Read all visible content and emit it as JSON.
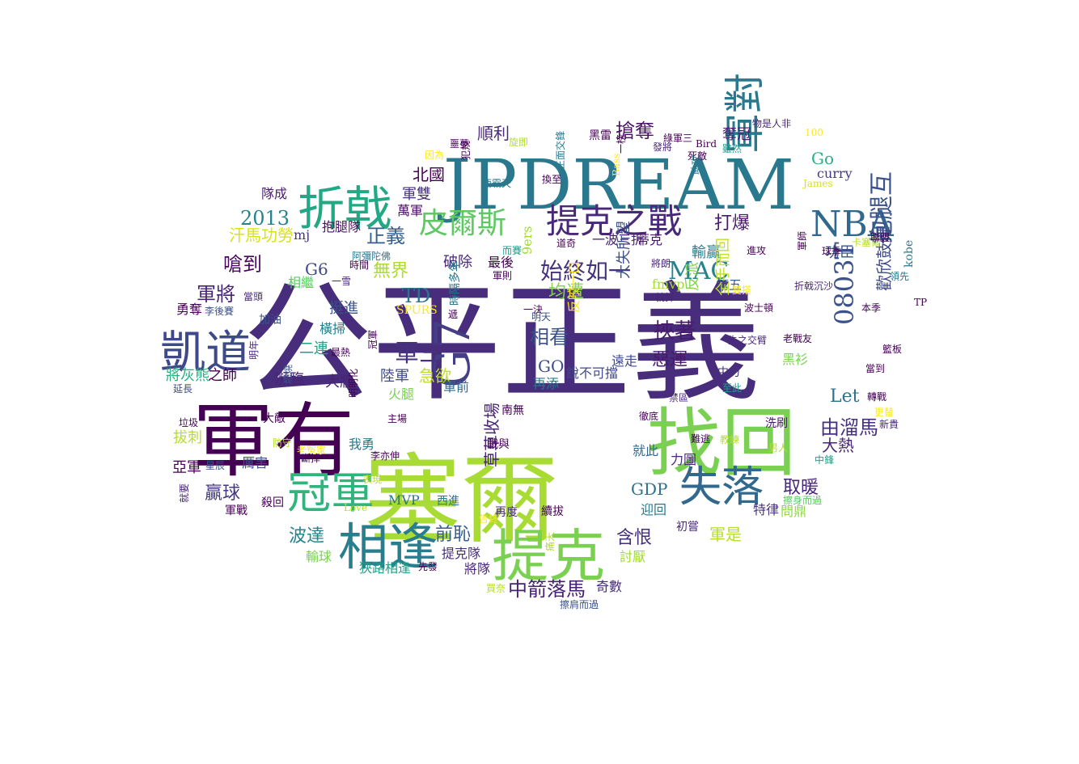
{
  "words": [
    {
      "text": "公平正義",
      "color": "#472d7b"
    },
    {
      "text": "塞爾",
      "color": "#a8db34"
    },
    {
      "text": "JPDREAM",
      "color": "#2a788e"
    },
    {
      "text": "軍有",
      "color": "#440154"
    },
    {
      "text": "找回",
      "color": "#7ad151"
    },
    {
      "text": "提克",
      "color": "#7ad151"
    },
    {
      "text": "相逢",
      "color": "#287d8e"
    },
    {
      "text": "折戟",
      "color": "#22a884"
    },
    {
      "text": "凱道",
      "color": "#3e4989"
    },
    {
      "text": "冠軍",
      "color": "#2fb47c"
    },
    {
      "text": "失落",
      "color": "#31688e"
    },
    {
      "text": "軍對",
      "color": "#2a788e"
    },
    {
      "text": "提克之戰",
      "color": "#482878"
    },
    {
      "text": "皮爾斯",
      "color": "#5ec962"
    },
    {
      "text": "NBA",
      "color": "#31688e"
    },
    {
      "text": "G7",
      "color": "#433e85"
    },
    {
      "text": "0803T",
      "color": "#3b528b"
    },
    {
      "text": "始終如一",
      "color": "#46337e"
    },
    {
      "text": "MAC",
      "color": "#25838e"
    },
    {
      "text": "抱腿互",
      "color": "#3b528b"
    },
    {
      "text": "軍三",
      "color": "#46327e"
    },
    {
      "text": "2013",
      "color": "#26828e"
    },
    {
      "text": "軍將",
      "color": "#482475"
    },
    {
      "text": "無界",
      "color": "#addc30"
    },
    {
      "text": "正義",
      "color": "#355f8d"
    },
    {
      "text": "搶奪",
      "color": "#471164"
    },
    {
      "text": "北國",
      "color": "#440154"
    },
    {
      "text": "打爆",
      "color": "#48186a"
    },
    {
      "text": "歡欣鼓舞",
      "color": "#3e4a89"
    },
    {
      "text": "嗆到",
      "color": "#46085c"
    },
    {
      "text": "G6",
      "color": "#3e4989"
    },
    {
      "text": "TD",
      "color": "#2c728e"
    },
    {
      "text": "相看",
      "color": "#3b518b"
    },
    {
      "text": "挾著",
      "color": "#481a6c"
    },
    {
      "text": "惡運",
      "color": "#48186a"
    },
    {
      "text": "均遭",
      "color": "#86d549"
    },
    {
      "text": "Let",
      "color": "#2c728e"
    },
    {
      "text": "由溜馬",
      "color": "#46307e"
    },
    {
      "text": "大熱",
      "color": "#482576"
    },
    {
      "text": "失落",
      "color": "#31688e"
    },
    {
      "text": "中箭落馬",
      "color": "#482173"
    },
    {
      "text": "前恥",
      "color": "#365c8d"
    },
    {
      "text": "波達",
      "color": "#25838e"
    },
    {
      "text": "贏球",
      "color": "#443a83"
    },
    {
      "text": "含恨",
      "color": "#46307e"
    },
    {
      "text": "GDP",
      "color": "#2d718e"
    },
    {
      "text": "取暖",
      "color": "#482677"
    },
    {
      "text": "軍是",
      "color": "#b5de2b"
    },
    {
      "text": "急欲",
      "color": "#bddf26"
    },
    {
      "text": "GO",
      "color": "#3e4c8a"
    },
    {
      "text": "第五",
      "color": "#34618d"
    },
    {
      "text": "功臣",
      "color": "#39568c"
    },
    {
      "text": "Go",
      "color": "#29af7f"
    },
    {
      "text": "curry",
      "color": "#453882"
    },
    {
      "text": "順利",
      "color": "#482979"
    },
    {
      "text": "奪冠",
      "color": "#482071"
    },
    {
      "text": "軍雙",
      "color": "#46327e"
    },
    {
      "text": "萬軍",
      "color": "#470e61"
    },
    {
      "text": "汗馬功勞",
      "color": "#d8e219"
    },
    {
      "text": "抱腿隊",
      "color": "#471365"
    },
    {
      "text": "隊成",
      "color": "#481b6d"
    },
    {
      "text": "mj",
      "color": "#46327e"
    },
    {
      "text": "9ers",
      "color": "#a0da39"
    },
    {
      "text": "破除",
      "color": "#482878"
    },
    {
      "text": "最後",
      "color": "#440154"
    },
    {
      "text": "輸贏",
      "color": "#277f8e"
    },
    {
      "text": "一波三折",
      "color": "#481f70"
    },
    {
      "text": "蒂克",
      "color": "#481769"
    },
    {
      "text": "反派",
      "color": "#7fd34e"
    },
    {
      "text": "fmvp",
      "color": "#a2da37"
    },
    {
      "text": "大失所望",
      "color": "#3b528b"
    },
    {
      "text": "全手而回",
      "color": "#c2df23"
    },
    {
      "text": "相繼",
      "color": "#5ec962"
    },
    {
      "text": "挺進",
      "color": "#3b528b"
    },
    {
      "text": "二連",
      "color": "#1f9e89"
    },
    {
      "text": "橫掃",
      "color": "#277f8e"
    },
    {
      "text": "勇奪",
      "color": "#440154"
    },
    {
      "text": "加油",
      "color": "#3b528b"
    },
    {
      "text": "將灰熊",
      "color": "#29af7f"
    },
    {
      "text": "之師",
      "color": "#440154"
    },
    {
      "text": "瀕臨",
      "color": "#482475"
    },
    {
      "text": "大牆",
      "color": "#482475"
    },
    {
      "text": "陸軍",
      "color": "#3e4a89"
    },
    {
      "text": "火腿",
      "color": "#7ad151"
    },
    {
      "text": "軍前",
      "color": "#31688e"
    },
    {
      "text": "再添",
      "color": "#2a788e"
    },
    {
      "text": "銳不可擋",
      "color": "#3e4989"
    },
    {
      "text": "反咬一口",
      "color": "#fde725"
    },
    {
      "text": "遠走",
      "color": "#3e4c8a"
    },
    {
      "text": "黑衫",
      "color": "#7ad151"
    },
    {
      "text": "中力",
      "color": "#472f7d"
    },
    {
      "text": "洗刷",
      "color": "#481769"
    },
    {
      "text": "亞軍",
      "color": "#440154"
    },
    {
      "text": "拔刺",
      "color": "#b5de2b"
    },
    {
      "text": "厲害",
      "color": "#3e4a89"
    },
    {
      "text": "我勇",
      "color": "#2a788e"
    },
    {
      "text": "草草收場",
      "color": "#482475"
    },
    {
      "text": "南無",
      "color": "#440154"
    },
    {
      "text": "戰與",
      "color": "#440154"
    },
    {
      "text": "MVP",
      "color": "#2c728e"
    },
    {
      "text": "西進",
      "color": "#2a788e"
    },
    {
      "text": "再度",
      "color": "#482878"
    },
    {
      "text": "續拔",
      "color": "#440154"
    },
    {
      "text": "迎回",
      "color": "#2a788e"
    },
    {
      "text": "就此",
      "color": "#31688e"
    },
    {
      "text": "力圖",
      "color": "#482878"
    },
    {
      "text": "問鼎",
      "color": "#8fd744"
    },
    {
      "text": "特律",
      "color": "#46327e"
    },
    {
      "text": "提克隊",
      "color": "#472f7d"
    },
    {
      "text": "狹路相逢",
      "color": "#1f9e89"
    },
    {
      "text": "將隊",
      "color": "#482878"
    },
    {
      "text": "討厭",
      "color": "#a2da37"
    },
    {
      "text": "奇數",
      "color": "#472c7a"
    },
    {
      "text": "輸球",
      "color": "#7ad151"
    },
    {
      "text": "初嘗",
      "color": "#482878"
    },
    {
      "text": "殺回",
      "color": "#440154"
    },
    {
      "text": "大敵",
      "color": "#440154"
    },
    {
      "text": "垃圾",
      "color": "#440154"
    },
    {
      "text": "星辰",
      "color": "#3b528b"
    },
    {
      "text": "就要",
      "color": "#482878"
    },
    {
      "text": "軍戰",
      "color": "#440154"
    },
    {
      "text": "SPURS",
      "color": "#fde725"
    },
    {
      "text": "延長",
      "color": "#3e4989"
    },
    {
      "text": "明年",
      "color": "#482878"
    },
    {
      "text": "李後賽",
      "color": "#3b528b"
    },
    {
      "text": "燃燒",
      "color": "#3b528b"
    },
    {
      "text": "最熱",
      "color": "#440154"
    },
    {
      "text": "冠軍",
      "color": "#440154"
    },
    {
      "text": "阿彌陀佛",
      "color": "#2a788e"
    },
    {
      "text": "時間",
      "color": "#440154"
    },
    {
      "text": "時隔多年",
      "color": "#2a788e"
    },
    {
      "text": "軍則",
      "color": "#440154"
    },
    {
      "text": "一決",
      "color": "#440154"
    },
    {
      "text": "明天",
      "color": "#3b528b"
    },
    {
      "text": "將朗",
      "color": "#482878"
    },
    {
      "text": "就算",
      "color": "#482878"
    },
    {
      "text": "波士頓",
      "color": "#440154"
    },
    {
      "text": "失之交臂",
      "color": "#482878"
    },
    {
      "text": "老戰友",
      "color": "#440154"
    },
    {
      "text": "折戟沉沙",
      "color": "#482878"
    },
    {
      "text": "本季",
      "color": "#440154"
    },
    {
      "text": "kobe",
      "color": "#2a788e"
    },
    {
      "text": "球季",
      "color": "#440154"
    },
    {
      "text": "卡塞爾",
      "color": "#b5de2b"
    },
    {
      "text": "進攻",
      "color": "#440154"
    },
    {
      "text": "物是人非",
      "color": "#482878"
    },
    {
      "text": "黑雷",
      "color": "#440154"
    },
    {
      "text": "100",
      "color": "#fde725"
    },
    {
      "text": "Bird",
      "color": "#440154"
    },
    {
      "text": "Love",
      "color": "#b5de2b"
    },
    {
      "text": "James",
      "color": "#d8e219"
    },
    {
      "text": "男人",
      "color": "#b5de2b"
    },
    {
      "text": "中鋒",
      "color": "#1f9e89"
    },
    {
      "text": "新貴",
      "color": "#482878"
    },
    {
      "text": "擦身而過",
      "color": "#5ec962"
    },
    {
      "text": "擦肩而過",
      "color": "#3b528b"
    },
    {
      "text": "買奈",
      "color": "#b5de2b"
    },
    {
      "text": "教練",
      "color": "#b5de2b"
    },
    {
      "text": "難逃",
      "color": "#440154"
    },
    {
      "text": "禁區",
      "color": "#482878"
    },
    {
      "text": "至此",
      "color": "#1f9e89"
    },
    {
      "text": "徹底",
      "color": "#440154"
    },
    {
      "text": "告終",
      "color": "#fde725"
    },
    {
      "text": "先發",
      "color": "#440154"
    },
    {
      "text": "主場",
      "color": "#440154"
    },
    {
      "text": "防守",
      "color": "#b5de2b"
    },
    {
      "text": "老冤家",
      "color": "#fde725"
    },
    {
      "text": "斷掉",
      "color": "#440154"
    },
    {
      "text": "表現",
      "color": "#b5de2b"
    },
    {
      "text": "李亦伸",
      "color": "#440154"
    },
    {
      "text": "明明化",
      "color": "#440154"
    },
    {
      "text": "一雪",
      "color": "#482878"
    },
    {
      "text": "死敵",
      "color": "#440154"
    },
    {
      "text": "綠軍三",
      "color": "#440154"
    },
    {
      "text": "發將",
      "color": "#482878"
    },
    {
      "text": "旋即",
      "color": "#b5de2b"
    },
    {
      "text": "噩夢",
      "color": "#440154"
    },
    {
      "text": "因為",
      "color": "#fde725"
    },
    {
      "text": "換至",
      "color": "#440154"
    },
    {
      "text": "助攻",
      "color": "#2a788e"
    },
    {
      "text": "雖然",
      "color": "#1f9e89"
    },
    {
      "text": "軍師",
      "color": "#440154"
    },
    {
      "text": "TP",
      "color": "#440154"
    },
    {
      "text": "領先",
      "color": "#2a788e"
    },
    {
      "text": "雙搭",
      "color": "#fde725"
    },
    {
      "text": "籃板",
      "color": "#440154"
    },
    {
      "text": "轉戰",
      "color": "#440154"
    },
    {
      "text": "當到",
      "color": "#440154"
    },
    {
      "text": "更替",
      "color": "#fde725"
    },
    {
      "text": "聯盟",
      "color": "#440154"
    },
    {
      "text": "犯規",
      "color": "#440154"
    },
    {
      "text": "西霸天",
      "color": "#2a788e"
    },
    {
      "text": "正面交鋒",
      "color": "#2a788e"
    },
    {
      "text": "而賽",
      "color": "#1f9e89"
    },
    {
      "text": "道奇",
      "color": "#440154"
    },
    {
      "text": "遞",
      "color": "#440154"
    },
    {
      "text": "Bass",
      "color": "#fde725"
    },
    {
      "text": "一榜",
      "color": "#440154"
    },
    {
      "text": "當頭",
      "color": "#482878"
    },
    {
      "text": "痛天",
      "color": "#b5de2b"
    },
    {
      "text": "凱爾特人",
      "color": "#3b528b"
    }
  ]
}
